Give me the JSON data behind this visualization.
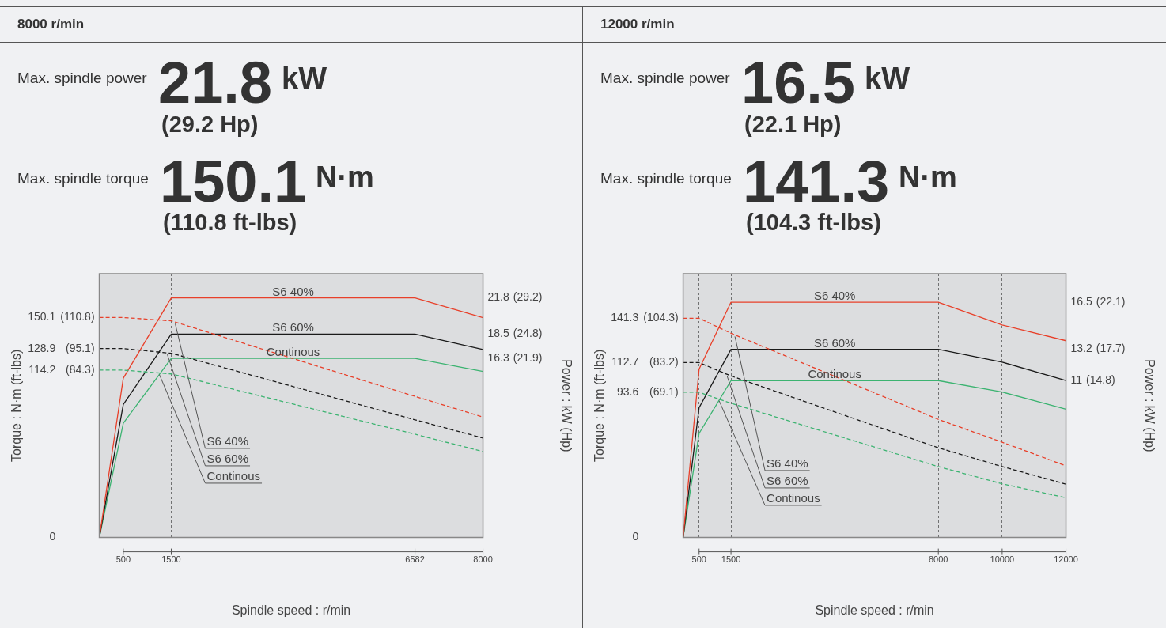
{
  "chart_data": [
    {
      "type": "line",
      "title": "8000 r/min",
      "annotations": [
        "Max. spindle power",
        "21.8",
        "kW",
        "(29.2 Hp)",
        "Max. spindle torque",
        "150.1",
        "N·m",
        "(110.8 ft-lbs)",
        "(21.9)",
        "(24.8)",
        "(29.2)"
      ],
      "xlabel": "Spindle speed : r/min",
      "ylabel": "Torque : N·m (ft-lbs)",
      "y2label": "Power : kW (Hp)",
      "x": [
        0,
        500,
        1500,
        6582,
        8000
      ],
      "xlim": [
        0,
        8000
      ],
      "xticks": [
        500,
        1500,
        6582,
        8000
      ],
      "ylim": [
        0,
        180
      ],
      "yticks": [
        0,
        114.2,
        128.9,
        150.1
      ],
      "y3lim": [
        0,
        132.8
      ],
      "y3ticks": [
        {
          "value": 84.3,
          "label": "(84.3)"
        },
        {
          "value": 95.1,
          "label": "(95.1)"
        },
        {
          "value": 110.8,
          "label": "(110.8)"
        }
      ],
      "y2lim": [
        0,
        24
      ],
      "y2ticks": [
        16.3,
        18.5,
        21.8
      ],
      "grid": "x",
      "legend": false,
      "marker": "none",
      "series": [
        {
          "name": "S6 40%",
          "color": "#e8402a",
          "line_style": "dashed",
          "values": [
            150.1,
            150.1,
            147.8,
            96.3,
            82.2
          ]
        },
        {
          "name": "S6 60%",
          "color": "#1a1a1a",
          "line_style": "dashed",
          "values": [
            128.9,
            128.9,
            125.7,
            80.3,
            67.9
          ]
        },
        {
          "name": "Continous",
          "color": "#3cb371",
          "line_style": "dashed",
          "values": [
            114.2,
            114.2,
            111.6,
            70.5,
            58.6
          ]
        },
        {
          "name": "S6 40%",
          "color": "#e8402a",
          "line_style": "solid",
          "axis": "y2",
          "values": [
            0,
            14.5,
            21.8,
            21.8,
            20.0
          ]
        },
        {
          "name": "S6 60%",
          "color": "#1a1a1a",
          "line_style": "solid",
          "axis": "y2",
          "values": [
            0,
            12.1,
            18.5,
            18.5,
            17.1
          ]
        },
        {
          "name": "Continous",
          "color": "#3cb371",
          "line_style": "solid",
          "axis": "y2",
          "values": [
            0,
            10.4,
            16.3,
            16.3,
            15.1
          ]
        }
      ]
    },
    {
      "type": "line",
      "title": "12000 r/min",
      "annotations": [
        "Max. spindle power",
        "16.5",
        "kW",
        "(22.1 Hp)",
        "Max. spindle torque",
        "141.3",
        "N·m",
        "(104.3 ft-lbs)",
        "(14.8)",
        "(17.7)",
        "(22.1)"
      ],
      "xlabel": "Spindle speed : r/min",
      "ylabel": "Torque : N·m (ft-lbs)",
      "y2label": "Power : kW (Hp)",
      "x": [
        0,
        500,
        1500,
        8000,
        10000,
        12000
      ],
      "xlim": [
        0,
        12000
      ],
      "xticks": [
        500,
        1500,
        8000,
        10000,
        12000
      ],
      "ylim": [
        0,
        170
      ],
      "yticks": [
        0,
        93.6,
        112.7,
        141.3
      ],
      "y3lim": [
        0,
        125.4
      ],
      "y3ticks": [
        {
          "value": 69.1,
          "label": "(69.1)"
        },
        {
          "value": 83.2,
          "label": "(83.2)"
        },
        {
          "value": 104.3,
          "label": "(104.3)"
        }
      ],
      "y2lim": [
        0,
        18.5
      ],
      "y2ticks": [
        11,
        13.2,
        16.5
      ],
      "grid": "x",
      "legend": false,
      "marker": "none",
      "series": [
        {
          "name": "S6 40%",
          "color": "#e8402a",
          "line_style": "dashed",
          "values": [
            141.3,
            141.3,
            131.6,
            76.1,
            61.4,
            46.2
          ]
        },
        {
          "name": "S6 60%",
          "color": "#1a1a1a",
          "line_style": "dashed",
          "values": [
            112.7,
            112.7,
            104.1,
            57.8,
            45.7,
            34.4
          ]
        },
        {
          "name": "Continous",
          "color": "#3cb371",
          "line_style": "dashed",
          "values": [
            93.6,
            93.6,
            86.5,
            45.7,
            34.6,
            25.6
          ]
        },
        {
          "name": "S6 40%",
          "color": "#e8402a",
          "line_style": "solid",
          "axis": "y2",
          "values": [
            0,
            11.8,
            16.5,
            16.5,
            14.9,
            13.8
          ]
        },
        {
          "name": "S6 60%",
          "color": "#1a1a1a",
          "line_style": "solid",
          "axis": "y2",
          "values": [
            0,
            9.1,
            13.2,
            13.2,
            12.3,
            11.0
          ]
        },
        {
          "name": "Continous",
          "color": "#3cb371",
          "line_style": "solid",
          "axis": "y2",
          "values": [
            0,
            7.3,
            11,
            11,
            10.2,
            9.0
          ]
        }
      ]
    }
  ]
}
